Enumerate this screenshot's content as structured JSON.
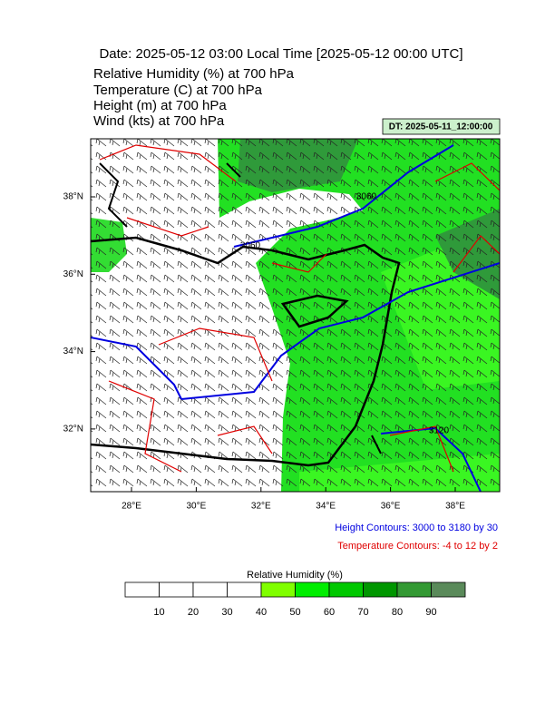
{
  "title": "Date: 2025-05-12  03:00 Local Time [2025-05-12  00:00 UTC]",
  "fields": [
    "Relative Humidity   (%)     at   700 hPa",
    "Temperature   (C)     at   700 hPa",
    "Height   (m)     at   700 hPa",
    "Wind   (kts)     at   700 hPa"
  ],
  "dt_box": "DT: 2025-05-11_12:00:00",
  "lat_labels": [
    "38°N",
    "36°N",
    "34°N",
    "32°N"
  ],
  "lon_labels": [
    "28°E",
    "30°E",
    "32°E",
    "34°E",
    "36°E",
    "38°E"
  ],
  "contour_labels": [
    "3060",
    "3060",
    "3120"
  ],
  "notes": {
    "height": "Height Contours: 3000 to 3180 by 30",
    "temperature": "Temperature Contours: -4 to 12 by 2"
  },
  "colorbar": {
    "title": "Relative Humidity  (%)",
    "ticks": [
      10,
      20,
      30,
      40,
      50,
      60,
      70,
      80,
      90
    ],
    "colors": [
      "#ffffff",
      "#ffffff",
      "#ffffff",
      "#ffffff",
      "#80ff00",
      "#00ee00",
      "#00c800",
      "#009600",
      "#339933",
      "#5a8a5a"
    ]
  }
}
